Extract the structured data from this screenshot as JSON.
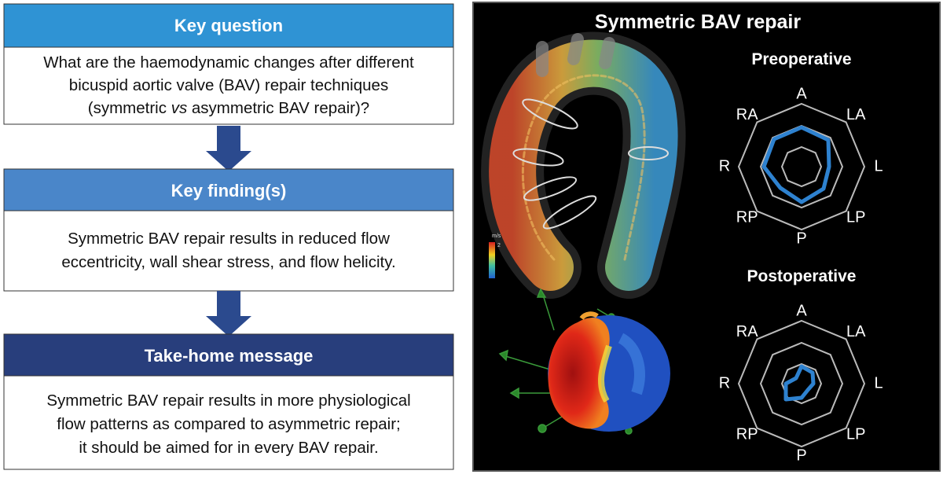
{
  "key_question": {
    "title": "Key question",
    "lines": [
      "What are the haemodynamic changes after different",
      "bicuspid aortic valve (BAV) repair techniques",
      [
        "(symmetric ",
        "vs",
        " asymmetric BAV repair)?"
      ]
    ]
  },
  "key_findings": {
    "title": "Key finding(s)",
    "lines": [
      "Symmetric BAV repair results in reduced flow",
      "eccentricity, wall shear stress, and flow helicity."
    ]
  },
  "take_home": {
    "title": "Take-home message",
    "lines": [
      "Symmetric BAV repair results in more physiological",
      "flow patterns as compared to asymmetric repair;",
      "it should be aimed for in every BAV repair."
    ]
  },
  "figure": {
    "title": "Symmetric BAV repair",
    "colorbar": {
      "unit": "m/s",
      "max_label": "2"
    },
    "radars": [
      {
        "title": "Preoperative",
        "axes": [
          "A",
          "LA",
          "L",
          "LP",
          "P",
          "RP",
          "R",
          "RA"
        ]
      },
      {
        "title": "Postoperative",
        "axes": [
          "A",
          "LA",
          "L",
          "LP",
          "P",
          "RP",
          "R",
          "RA"
        ]
      }
    ]
  }
}
